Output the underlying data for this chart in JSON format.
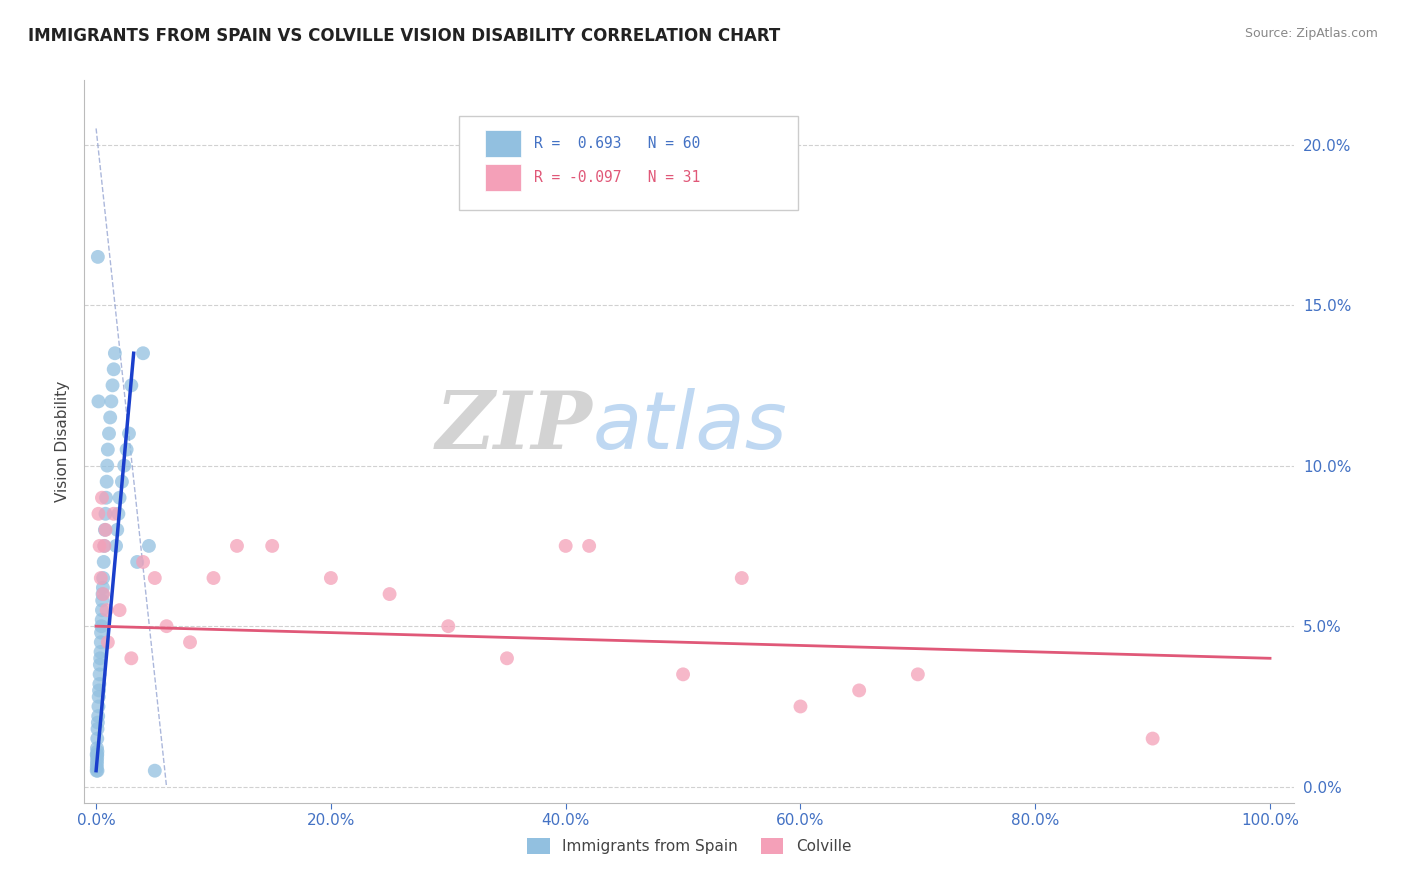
{
  "title": "IMMIGRANTS FROM SPAIN VS COLVILLE VISION DISABILITY CORRELATION CHART",
  "source_text": "Source: ZipAtlas.com",
  "ylabel": "Vision Disability",
  "x_tick_labels": [
    "0.0%",
    "20.0%",
    "40.0%",
    "60.0%",
    "80.0%",
    "100.0%"
  ],
  "x_tick_values": [
    0,
    20,
    40,
    60,
    80,
    100
  ],
  "y_tick_labels": [
    "20.0%",
    "15.0%",
    "10.0%",
    "5.0%",
    "0.0%"
  ],
  "y_tick_values": [
    20,
    15,
    10,
    5,
    0
  ],
  "xlim": [
    -1,
    102
  ],
  "ylim": [
    -0.5,
    22
  ],
  "legend_labels": [
    "Immigrants from Spain",
    "Colville"
  ],
  "legend_R": [
    0.693,
    -0.097
  ],
  "legend_N": [
    60,
    31
  ],
  "blue_color": "#92c0e0",
  "pink_color": "#f4a0b8",
  "blue_line_color": "#1a3fcc",
  "pink_line_color": "#e05878",
  "title_color": "#222222",
  "axis_label_color": "#4472c4",
  "blue_scatter_x": [
    0.05,
    0.08,
    0.1,
    0.12,
    0.15,
    0.18,
    0.2,
    0.22,
    0.25,
    0.28,
    0.3,
    0.32,
    0.35,
    0.38,
    0.4,
    0.42,
    0.45,
    0.48,
    0.5,
    0.52,
    0.55,
    0.58,
    0.6,
    0.65,
    0.7,
    0.75,
    0.8,
    0.85,
    0.9,
    0.95,
    1.0,
    1.1,
    1.2,
    1.3,
    1.4,
    1.5,
    1.6,
    1.7,
    1.8,
    1.9,
    2.0,
    2.2,
    2.4,
    2.6,
    2.8,
    3.0,
    3.5,
    4.0,
    4.5,
    5.0,
    0.05,
    0.06,
    0.07,
    0.08,
    0.09,
    0.1,
    0.11,
    0.12,
    0.15,
    0.2
  ],
  "blue_scatter_y": [
    1.0,
    1.2,
    1.5,
    1.8,
    2.0,
    2.2,
    2.5,
    2.8,
    3.0,
    3.2,
    3.5,
    3.8,
    4.0,
    4.2,
    4.5,
    4.8,
    5.0,
    5.2,
    5.5,
    5.8,
    6.0,
    6.2,
    6.5,
    7.0,
    7.5,
    8.0,
    8.5,
    9.0,
    9.5,
    10.0,
    10.5,
    11.0,
    11.5,
    12.0,
    12.5,
    13.0,
    13.5,
    7.5,
    8.0,
    8.5,
    9.0,
    9.5,
    10.0,
    10.5,
    11.0,
    12.5,
    7.0,
    13.5,
    7.5,
    0.5,
    0.5,
    0.6,
    0.7,
    0.8,
    0.9,
    1.0,
    1.1,
    0.5,
    16.5,
    12.0
  ],
  "pink_scatter_x": [
    0.2,
    0.3,
    0.4,
    0.5,
    0.6,
    0.7,
    0.8,
    0.9,
    1.0,
    1.5,
    2.0,
    3.0,
    4.0,
    5.0,
    6.0,
    8.0,
    10.0,
    12.0,
    15.0,
    20.0,
    25.0,
    30.0,
    35.0,
    40.0,
    42.0,
    50.0,
    55.0,
    60.0,
    65.0,
    70.0,
    90.0
  ],
  "pink_scatter_y": [
    8.5,
    7.5,
    6.5,
    9.0,
    6.0,
    7.5,
    8.0,
    5.5,
    4.5,
    8.5,
    5.5,
    4.0,
    7.0,
    6.5,
    5.0,
    4.5,
    6.5,
    7.5,
    7.5,
    6.5,
    6.0,
    5.0,
    4.0,
    7.5,
    7.5,
    3.5,
    6.5,
    2.5,
    3.0,
    3.5,
    1.5
  ],
  "blue_line_x0": 0.0,
  "blue_line_y0": 0.5,
  "blue_line_x1": 3.2,
  "blue_line_y1": 13.5,
  "pink_line_x0": 0.0,
  "pink_line_y0": 5.0,
  "pink_line_x1": 100.0,
  "pink_line_y1": 4.0,
  "diag_x0": 0.0,
  "diag_y0": 20.5,
  "diag_x1": 6.0,
  "diag_y1": 0.0
}
